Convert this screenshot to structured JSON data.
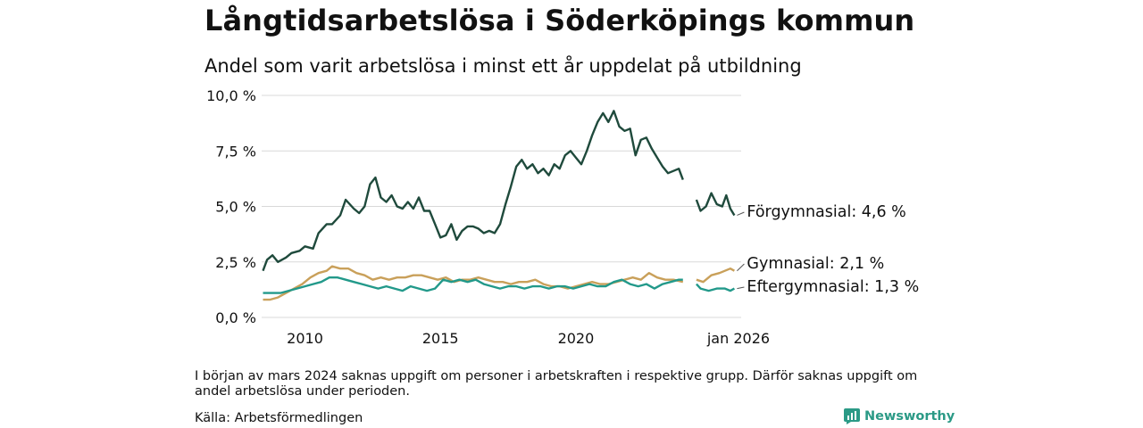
{
  "header": {
    "title": "Långtidsarbetslösa i Söderköpings kommun",
    "subtitle": "Andel som varit arbetslösa i minst ett år uppdelat på utbildning"
  },
  "footer": {
    "note": "I början av mars 2024 saknas uppgift om personer i arbetskraften i respektive grupp. Därför saknas uppgift om andel arbetslösa under perioden.",
    "source": "Källa: Arbetsförmedlingen",
    "brand": "Newsworthy"
  },
  "colors": {
    "forgymnasial": "#1f4a3c",
    "gymnasial": "#c9a05a",
    "eftergymnasial": "#22998a",
    "grid": "#d9d9d9"
  },
  "chart_data": {
    "type": "line",
    "xlim": [
      2008.4,
      2026.1
    ],
    "ylim": [
      0,
      10
    ],
    "y_ticks": [
      0,
      2.5,
      5,
      7.5,
      10
    ],
    "y_tick_labels": [
      "0,0 %",
      "2,5 %",
      "5,0 %",
      "7,5 %",
      "10,0 %"
    ],
    "x_ticks": [
      2010,
      2015,
      2020,
      2026
    ],
    "x_tick_labels": [
      "2010",
      "2015",
      "2020",
      "jan 2026"
    ],
    "gap": [
      2024.1,
      2024.35
    ],
    "series": [
      {
        "name": "Förgymnasial",
        "label": "Förgymnasial: 4,6 %",
        "color": "#1f4a3c",
        "points": [
          [
            2008.45,
            2.1
          ],
          [
            2008.6,
            2.6
          ],
          [
            2008.8,
            2.8
          ],
          [
            2009.0,
            2.5
          ],
          [
            2009.3,
            2.7
          ],
          [
            2009.5,
            2.9
          ],
          [
            2009.8,
            3.0
          ],
          [
            2010.0,
            3.2
          ],
          [
            2010.3,
            3.1
          ],
          [
            2010.5,
            3.8
          ],
          [
            2010.8,
            4.2
          ],
          [
            2011.0,
            4.2
          ],
          [
            2011.3,
            4.6
          ],
          [
            2011.5,
            5.3
          ],
          [
            2011.8,
            4.9
          ],
          [
            2012.0,
            4.7
          ],
          [
            2012.2,
            5.0
          ],
          [
            2012.4,
            6.0
          ],
          [
            2012.6,
            6.3
          ],
          [
            2012.8,
            5.4
          ],
          [
            2013.0,
            5.2
          ],
          [
            2013.2,
            5.5
          ],
          [
            2013.4,
            5.0
          ],
          [
            2013.6,
            4.9
          ],
          [
            2013.8,
            5.2
          ],
          [
            2014.0,
            4.9
          ],
          [
            2014.2,
            5.4
          ],
          [
            2014.4,
            4.8
          ],
          [
            2014.6,
            4.8
          ],
          [
            2014.8,
            4.2
          ],
          [
            2015.0,
            3.6
          ],
          [
            2015.2,
            3.7
          ],
          [
            2015.4,
            4.2
          ],
          [
            2015.6,
            3.5
          ],
          [
            2015.8,
            3.9
          ],
          [
            2016.0,
            4.1
          ],
          [
            2016.2,
            4.1
          ],
          [
            2016.4,
            4.0
          ],
          [
            2016.6,
            3.8
          ],
          [
            2016.8,
            3.9
          ],
          [
            2017.0,
            3.8
          ],
          [
            2017.2,
            4.2
          ],
          [
            2017.4,
            5.1
          ],
          [
            2017.6,
            5.9
          ],
          [
            2017.8,
            6.8
          ],
          [
            2018.0,
            7.1
          ],
          [
            2018.2,
            6.7
          ],
          [
            2018.4,
            6.9
          ],
          [
            2018.6,
            6.5
          ],
          [
            2018.8,
            6.7
          ],
          [
            2019.0,
            6.4
          ],
          [
            2019.2,
            6.9
          ],
          [
            2019.4,
            6.7
          ],
          [
            2019.6,
            7.3
          ],
          [
            2019.8,
            7.5
          ],
          [
            2020.0,
            7.2
          ],
          [
            2020.2,
            6.9
          ],
          [
            2020.4,
            7.5
          ],
          [
            2020.6,
            8.2
          ],
          [
            2020.8,
            8.8
          ],
          [
            2021.0,
            9.2
          ],
          [
            2021.2,
            8.8
          ],
          [
            2021.4,
            9.3
          ],
          [
            2021.6,
            8.6
          ],
          [
            2021.8,
            8.4
          ],
          [
            2022.0,
            8.5
          ],
          [
            2022.2,
            7.3
          ],
          [
            2022.4,
            8.0
          ],
          [
            2022.6,
            8.1
          ],
          [
            2022.8,
            7.6
          ],
          [
            2023.0,
            7.2
          ],
          [
            2023.2,
            6.8
          ],
          [
            2023.4,
            6.5
          ],
          [
            2023.6,
            6.6
          ],
          [
            2023.8,
            6.7
          ],
          [
            2023.95,
            6.2
          ],
          [
            2024.45,
            5.3
          ],
          [
            2024.6,
            4.8
          ],
          [
            2024.8,
            5.0
          ],
          [
            2025.0,
            5.6
          ],
          [
            2025.2,
            5.1
          ],
          [
            2025.4,
            5.0
          ],
          [
            2025.55,
            5.5
          ],
          [
            2025.7,
            4.9
          ],
          [
            2025.85,
            4.6
          ]
        ]
      },
      {
        "name": "Gymnasial",
        "label": "Gymnasial: 2,1 %",
        "color": "#c9a05a",
        "points": [
          [
            2008.45,
            0.8
          ],
          [
            2008.7,
            0.8
          ],
          [
            2009.0,
            0.9
          ],
          [
            2009.3,
            1.1
          ],
          [
            2009.6,
            1.3
          ],
          [
            2009.9,
            1.5
          ],
          [
            2010.2,
            1.8
          ],
          [
            2010.5,
            2.0
          ],
          [
            2010.8,
            2.1
          ],
          [
            2011.0,
            2.3
          ],
          [
            2011.3,
            2.2
          ],
          [
            2011.6,
            2.2
          ],
          [
            2011.9,
            2.0
          ],
          [
            2012.2,
            1.9
          ],
          [
            2012.5,
            1.7
          ],
          [
            2012.8,
            1.8
          ],
          [
            2013.1,
            1.7
          ],
          [
            2013.4,
            1.8
          ],
          [
            2013.7,
            1.8
          ],
          [
            2014.0,
            1.9
          ],
          [
            2014.3,
            1.9
          ],
          [
            2014.6,
            1.8
          ],
          [
            2014.9,
            1.7
          ],
          [
            2015.2,
            1.8
          ],
          [
            2015.5,
            1.6
          ],
          [
            2015.8,
            1.7
          ],
          [
            2016.1,
            1.7
          ],
          [
            2016.4,
            1.8
          ],
          [
            2016.7,
            1.7
          ],
          [
            2017.0,
            1.6
          ],
          [
            2017.3,
            1.6
          ],
          [
            2017.6,
            1.5
          ],
          [
            2017.9,
            1.6
          ],
          [
            2018.2,
            1.6
          ],
          [
            2018.5,
            1.7
          ],
          [
            2018.8,
            1.5
          ],
          [
            2019.1,
            1.4
          ],
          [
            2019.4,
            1.4
          ],
          [
            2019.7,
            1.3
          ],
          [
            2020.0,
            1.4
          ],
          [
            2020.3,
            1.5
          ],
          [
            2020.6,
            1.6
          ],
          [
            2020.9,
            1.5
          ],
          [
            2021.2,
            1.5
          ],
          [
            2021.5,
            1.6
          ],
          [
            2021.8,
            1.7
          ],
          [
            2022.1,
            1.8
          ],
          [
            2022.4,
            1.7
          ],
          [
            2022.7,
            2.0
          ],
          [
            2023.0,
            1.8
          ],
          [
            2023.3,
            1.7
          ],
          [
            2023.6,
            1.7
          ],
          [
            2023.95,
            1.6
          ],
          [
            2024.45,
            1.7
          ],
          [
            2024.7,
            1.6
          ],
          [
            2025.0,
            1.9
          ],
          [
            2025.3,
            2.0
          ],
          [
            2025.5,
            2.1
          ],
          [
            2025.7,
            2.2
          ],
          [
            2025.85,
            2.1
          ]
        ]
      },
      {
        "name": "Eftergymnasial",
        "label": "Eftergymnasial: 1,3 %",
        "color": "#22998a",
        "points": [
          [
            2008.45,
            1.1
          ],
          [
            2008.8,
            1.1
          ],
          [
            2009.1,
            1.1
          ],
          [
            2009.4,
            1.2
          ],
          [
            2009.7,
            1.3
          ],
          [
            2010.0,
            1.4
          ],
          [
            2010.3,
            1.5
          ],
          [
            2010.6,
            1.6
          ],
          [
            2010.9,
            1.8
          ],
          [
            2011.2,
            1.8
          ],
          [
            2011.5,
            1.7
          ],
          [
            2011.8,
            1.6
          ],
          [
            2012.1,
            1.5
          ],
          [
            2012.4,
            1.4
          ],
          [
            2012.7,
            1.3
          ],
          [
            2013.0,
            1.4
          ],
          [
            2013.3,
            1.3
          ],
          [
            2013.6,
            1.2
          ],
          [
            2013.9,
            1.4
          ],
          [
            2014.2,
            1.3
          ],
          [
            2014.5,
            1.2
          ],
          [
            2014.8,
            1.3
          ],
          [
            2015.1,
            1.7
          ],
          [
            2015.4,
            1.6
          ],
          [
            2015.7,
            1.7
          ],
          [
            2016.0,
            1.6
          ],
          [
            2016.3,
            1.7
          ],
          [
            2016.6,
            1.5
          ],
          [
            2016.9,
            1.4
          ],
          [
            2017.2,
            1.3
          ],
          [
            2017.5,
            1.4
          ],
          [
            2017.8,
            1.4
          ],
          [
            2018.1,
            1.3
          ],
          [
            2018.4,
            1.4
          ],
          [
            2018.7,
            1.4
          ],
          [
            2019.0,
            1.3
          ],
          [
            2019.3,
            1.4
          ],
          [
            2019.6,
            1.4
          ],
          [
            2019.9,
            1.3
          ],
          [
            2020.2,
            1.4
          ],
          [
            2020.5,
            1.5
          ],
          [
            2020.8,
            1.4
          ],
          [
            2021.1,
            1.4
          ],
          [
            2021.4,
            1.6
          ],
          [
            2021.7,
            1.7
          ],
          [
            2022.0,
            1.5
          ],
          [
            2022.3,
            1.4
          ],
          [
            2022.6,
            1.5
          ],
          [
            2022.9,
            1.3
          ],
          [
            2023.2,
            1.5
          ],
          [
            2023.5,
            1.6
          ],
          [
            2023.8,
            1.7
          ],
          [
            2023.95,
            1.7
          ],
          [
            2024.45,
            1.5
          ],
          [
            2024.6,
            1.3
          ],
          [
            2024.9,
            1.2
          ],
          [
            2025.2,
            1.3
          ],
          [
            2025.5,
            1.3
          ],
          [
            2025.7,
            1.2
          ],
          [
            2025.85,
            1.3
          ]
        ]
      }
    ]
  }
}
